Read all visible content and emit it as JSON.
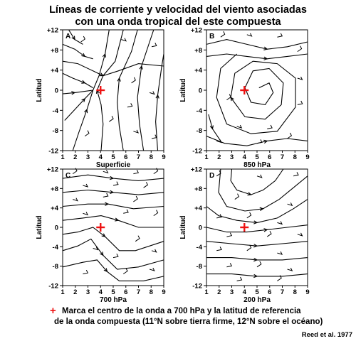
{
  "title": {
    "line1": "Líneas de corriente y velocidad del viento asociadas",
    "line2": "con una onda tropical del este compuesta"
  },
  "x_ticks": [
    "1",
    "2",
    "3",
    "4",
    "5",
    "6",
    "7",
    "8",
    "9"
  ],
  "y_ticks": [
    "+12",
    "+8",
    "+4",
    "0",
    "-4",
    "-8",
    "-12"
  ],
  "y_axis_label": "Latitud",
  "panels": [
    {
      "id": "A",
      "level_label": "Superficie"
    },
    {
      "id": "B",
      "level_label": "850 hPa"
    },
    {
      "id": "C",
      "level_label": "700 hPa"
    },
    {
      "id": "D",
      "level_label": "200 hPa"
    }
  ],
  "footnote": {
    "marker": "+",
    "line1": "Marca el centro de la onda a 700 hPa y la latitud de referencia",
    "line2": "de la onda compuesta (11°N sobre tierra firme, 12°N sobre el océano)"
  },
  "credit": "Reed et al. 1977",
  "colors": {
    "marker": "#ee1111",
    "lines": "#000000"
  }
}
